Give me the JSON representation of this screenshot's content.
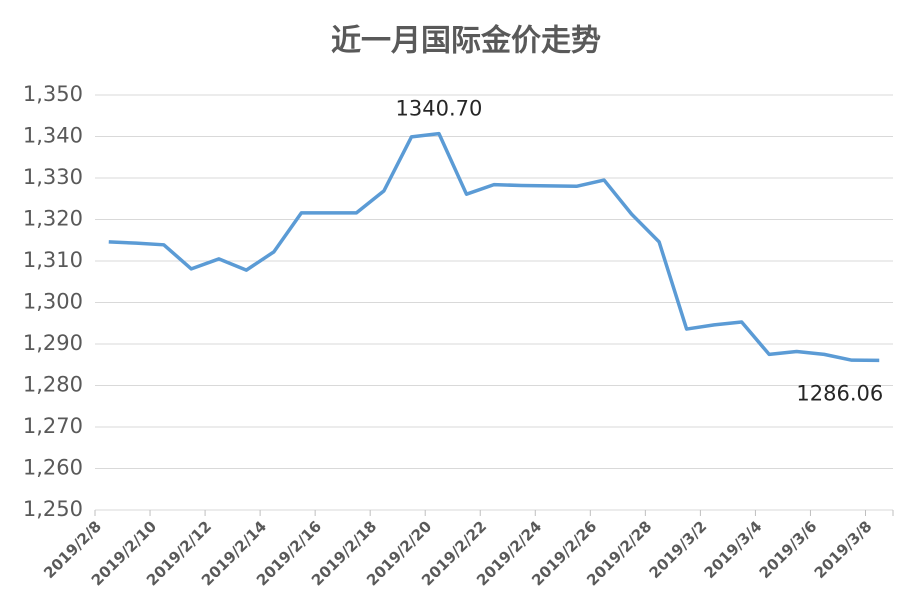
{
  "chart_data": {
    "type": "line",
    "title": "近一月国际金价走势",
    "categories": [
      "2019/2/8",
      null,
      "2019/2/10",
      null,
      "2019/2/12",
      null,
      "2019/2/14",
      null,
      "2019/2/16",
      null,
      "2019/2/18",
      null,
      "2019/2/20",
      null,
      "2019/2/22",
      null,
      "2019/2/24",
      null,
      "2019/2/26",
      null,
      "2019/2/28",
      null,
      "2019/3/2",
      null,
      "2019/3/4",
      null,
      "2019/3/6",
      null,
      "2019/3/8"
    ],
    "series": [
      {
        "color": "#5b9bd5",
        "values": [
          1314.6,
          1314.3,
          1313.9,
          1308.1,
          1310.5,
          1307.8,
          1312.2,
          1321.6,
          1321.6,
          1321.6,
          1326.9,
          1339.9,
          1340.7,
          1326.1,
          1328.4,
          1328.2,
          1328.1,
          1328.0,
          1329.5,
          1321.3,
          1314.6,
          1293.6,
          1294.6,
          1295.3,
          1287.5,
          1288.2,
          1287.5,
          1286.1,
          1286.06
        ],
        "value_labels": [
          null,
          null,
          null,
          null,
          null,
          null,
          null,
          null,
          null,
          null,
          null,
          null,
          "1340.70",
          null,
          null,
          null,
          null,
          null,
          null,
          null,
          null,
          null,
          null,
          null,
          null,
          null,
          null,
          null,
          "1286.06"
        ]
      }
    ],
    "ylim": [
      1250,
      1350
    ],
    "yticks": [
      {
        "value": 1250,
        "label": "1,250"
      },
      {
        "value": 1260,
        "label": "1,260"
      },
      {
        "value": 1270,
        "label": "1,270"
      },
      {
        "value": 1280,
        "label": "1,280"
      },
      {
        "value": 1290,
        "label": "1,290"
      },
      {
        "value": 1300,
        "label": "1,300"
      },
      {
        "value": 1310,
        "label": "1,310"
      },
      {
        "value": 1320,
        "label": "1,320"
      },
      {
        "value": 1330,
        "label": "1,330"
      },
      {
        "value": 1340,
        "label": "1,340"
      },
      {
        "value": 1350,
        "label": "1,350"
      }
    ],
    "grid": true
  }
}
